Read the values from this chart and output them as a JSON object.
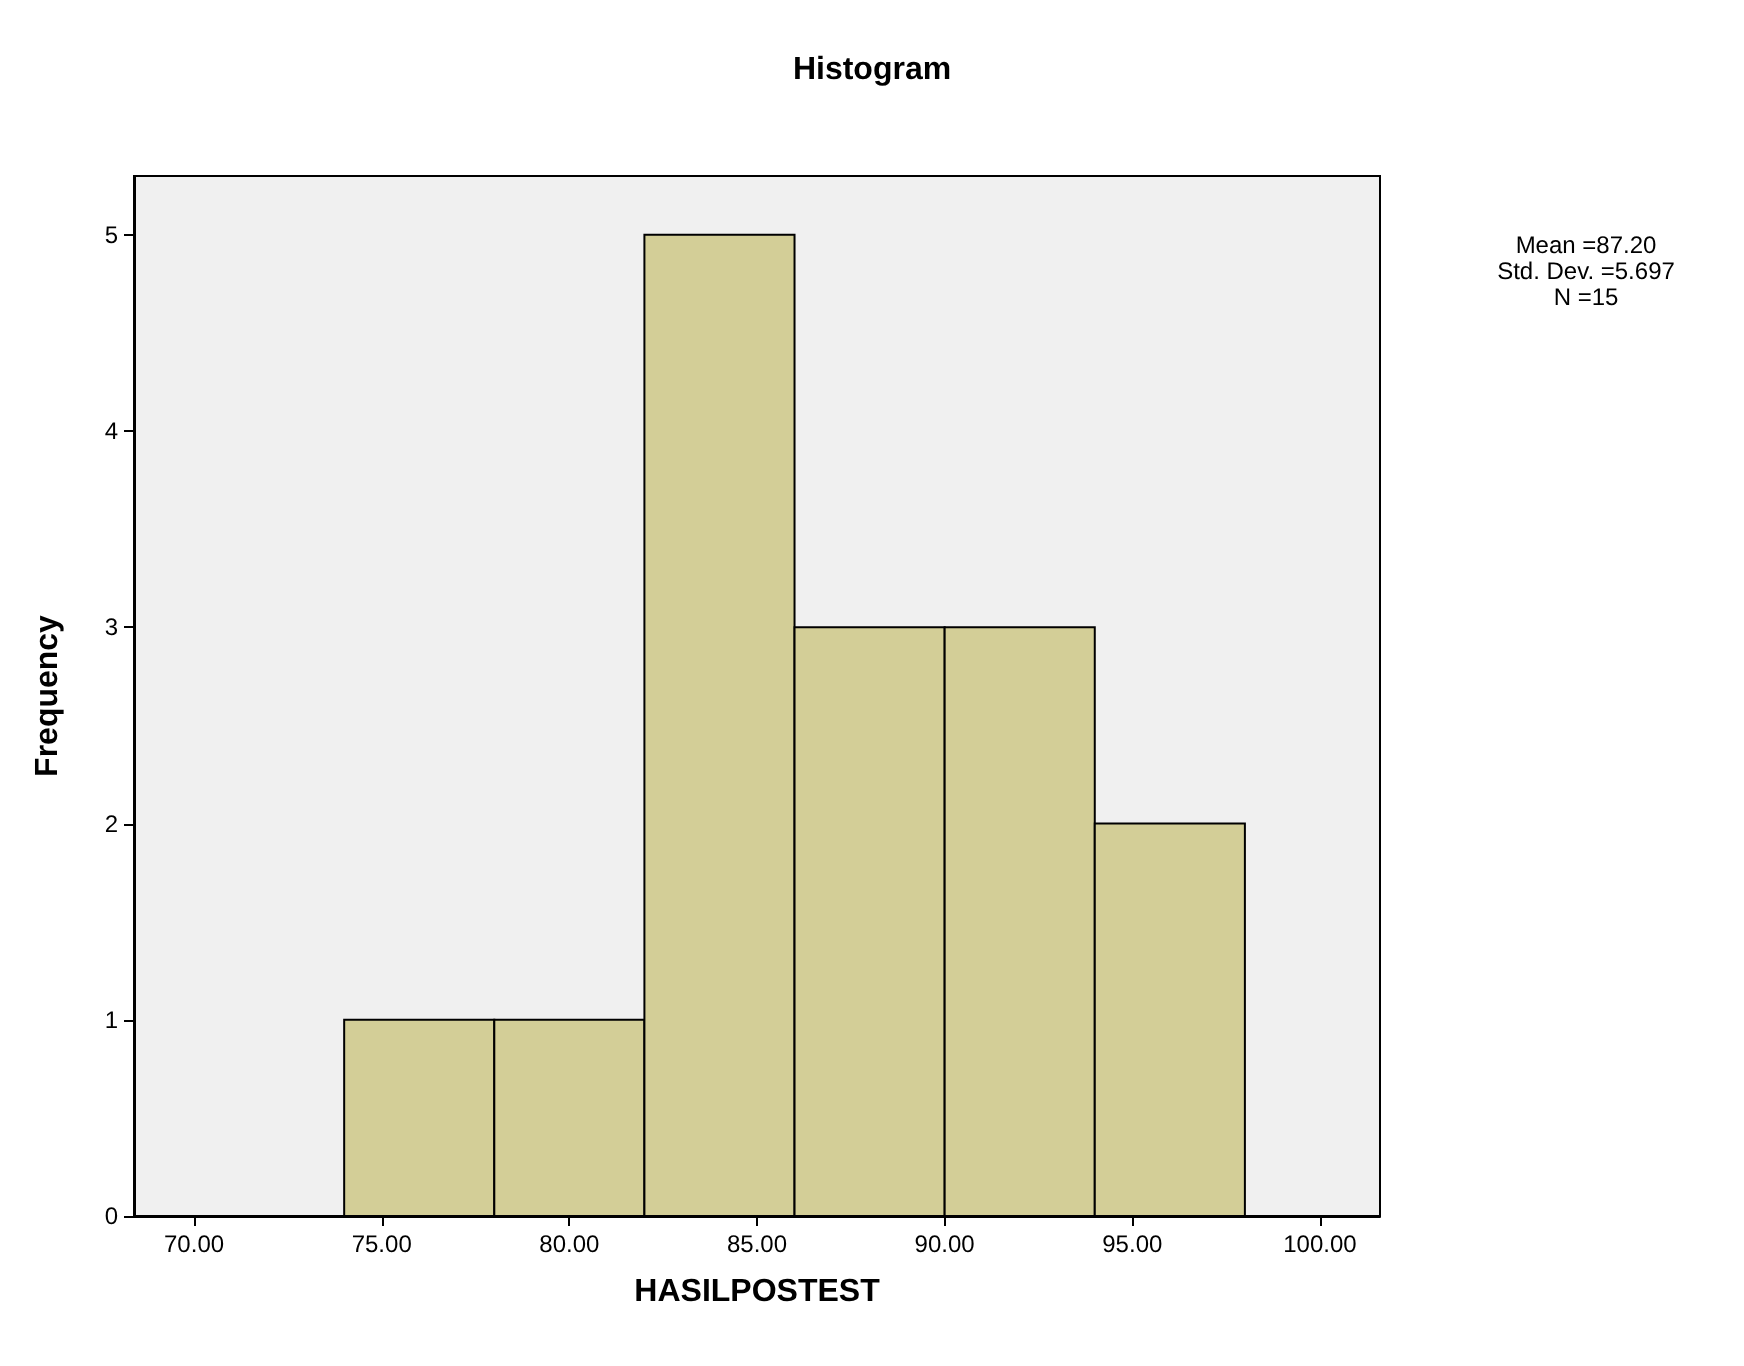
{
  "chart_data": {
    "type": "histogram",
    "title": "Histogram",
    "xlabel": "HASILPOSTEST",
    "ylabel": "Frequency",
    "bins": [
      74,
      78,
      82,
      86,
      90,
      94,
      98
    ],
    "values": [
      1,
      1,
      5,
      3,
      3,
      2
    ],
    "color": "#d3ce97",
    "xlim": [
      68.4,
      101.6
    ],
    "xticks": [
      {
        "value": 70,
        "label": "70.00"
      },
      {
        "value": 75,
        "label": "75.00"
      },
      {
        "value": 80,
        "label": "80.00"
      },
      {
        "value": 85,
        "label": "85.00"
      },
      {
        "value": 90,
        "label": "90.00"
      },
      {
        "value": 95,
        "label": "95.00"
      },
      {
        "value": 100,
        "label": "100.00"
      }
    ],
    "ylim": [
      0,
      5.3
    ],
    "yticks": [
      0,
      1,
      2,
      3,
      4,
      5
    ],
    "annotations": [
      "Mean =87.20",
      "Std. Dev. =5.697",
      "N =15"
    ],
    "grid": false
  }
}
